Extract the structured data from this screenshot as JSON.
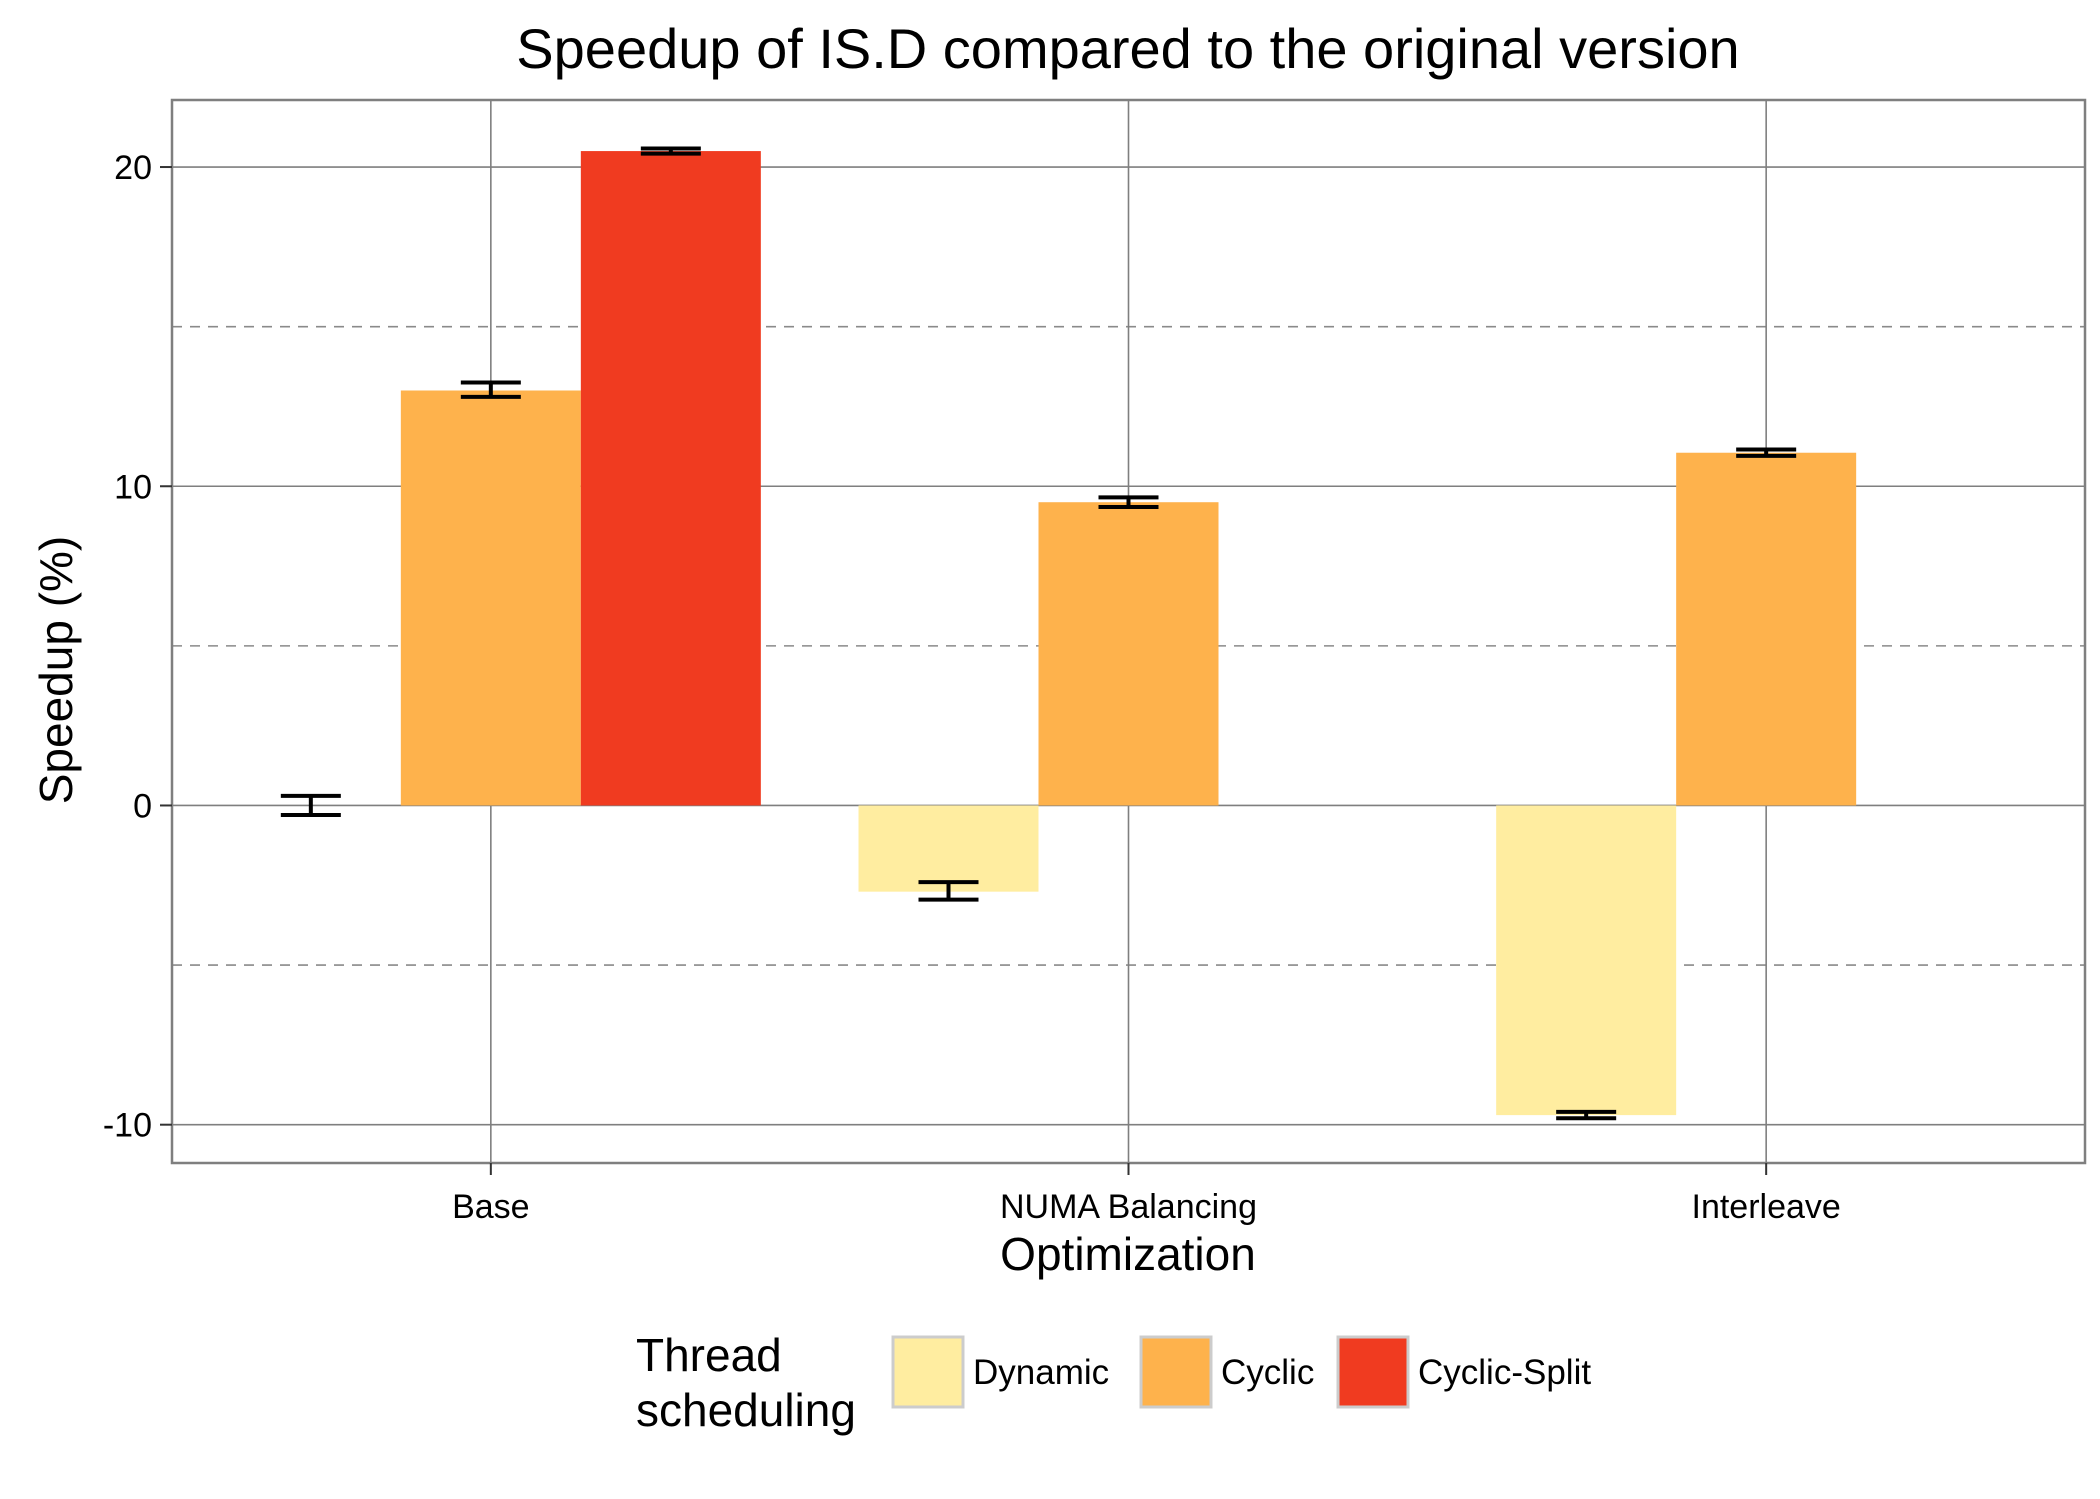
{
  "colors": {
    "background": "#ffffff",
    "grid_major": "#7f7f7f",
    "grid_minor": "#8a8a8a",
    "panel_border": "#7f7f7f",
    "legend_key_border": "#cccccc",
    "errorbar": "#000000"
  },
  "chart_data": {
    "type": "bar",
    "title": "Speedup of IS.D compared to the original version",
    "xlabel": "Optimization",
    "ylabel": "Speedup (%)",
    "categories": [
      "Base",
      "NUMA Balancing",
      "Interleave"
    ],
    "ylim": [
      -11.2,
      22.1
    ],
    "yticks": [
      -10,
      0,
      10,
      20
    ],
    "ytick_labels": [
      "-10",
      "0",
      "10",
      "20"
    ],
    "minor_gridlines": [
      -5,
      5,
      15
    ],
    "grid": true,
    "legend": {
      "position": "bottom",
      "title_lines": [
        "Thread",
        "scheduling"
      ]
    },
    "series": [
      {
        "name": "Dynamic",
        "color": "#FFEDA0",
        "values": [
          0.0,
          -2.7,
          -9.7
        ],
        "error_low": [
          -0.3,
          -2.95,
          -9.8
        ],
        "error_high": [
          0.3,
          -2.4,
          -9.6
        ]
      },
      {
        "name": "Cyclic",
        "color": "#FEB24C",
        "values": [
          13.0,
          9.5,
          11.05
        ],
        "error_low": [
          12.8,
          9.35,
          10.95
        ],
        "error_high": [
          13.25,
          9.65,
          11.15
        ]
      },
      {
        "name": "Cyclic-Split",
        "color": "#F03B20",
        "values": [
          20.5,
          null,
          null
        ],
        "error_low": [
          20.42,
          null,
          null
        ],
        "error_high": [
          20.58,
          null,
          null
        ]
      }
    ]
  }
}
